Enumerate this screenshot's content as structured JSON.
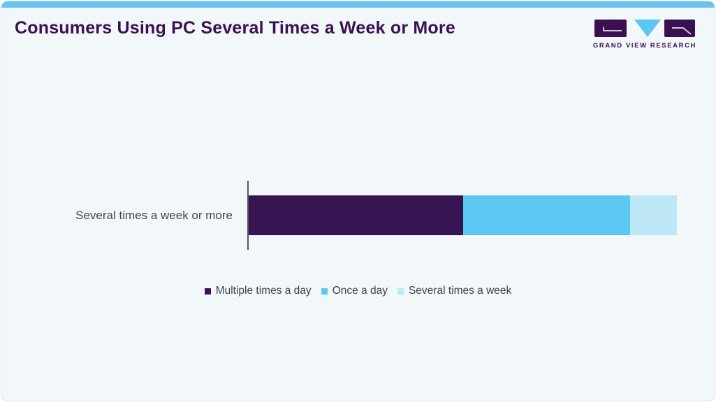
{
  "card": {
    "title": "Consumers Using PC Several Times a Week or More"
  },
  "logo": {
    "text": "GRAND VIEW RESEARCH"
  },
  "colors": {
    "accent_top_bar": "#66c5ee",
    "title_text": "#3a1053",
    "card_background": "#f2f7fa",
    "card_border": "#dbe2ea",
    "axis_line": "#54585a",
    "category_label_text": "#45454e",
    "legend_text": "#3f3f49",
    "logo_purple": "#3a1053",
    "logo_blue": "#5bc7f2",
    "logo_glyph_stroke": "#c9cbd6"
  },
  "chart_data": {
    "type": "bar",
    "orientation": "horizontal",
    "stacked": true,
    "title": "Consumers Using PC Several Times a Week or More",
    "categories": [
      "Several times a week or more"
    ],
    "series": [
      {
        "name": "Multiple times a day",
        "values": [
          50
        ],
        "color": "#371452"
      },
      {
        "name": "Once a day",
        "values": [
          39
        ],
        "color": "#5bc8f4"
      },
      {
        "name": "Several times a week",
        "values": [
          11
        ],
        "color": "#bee8f8"
      }
    ],
    "note": "segment shares estimated from pixel widths; no value labels or x-axis ticks shown",
    "xlim": [
      0,
      100
    ],
    "legend_position": "bottom",
    "grid": false,
    "value_labels_shown": false
  }
}
